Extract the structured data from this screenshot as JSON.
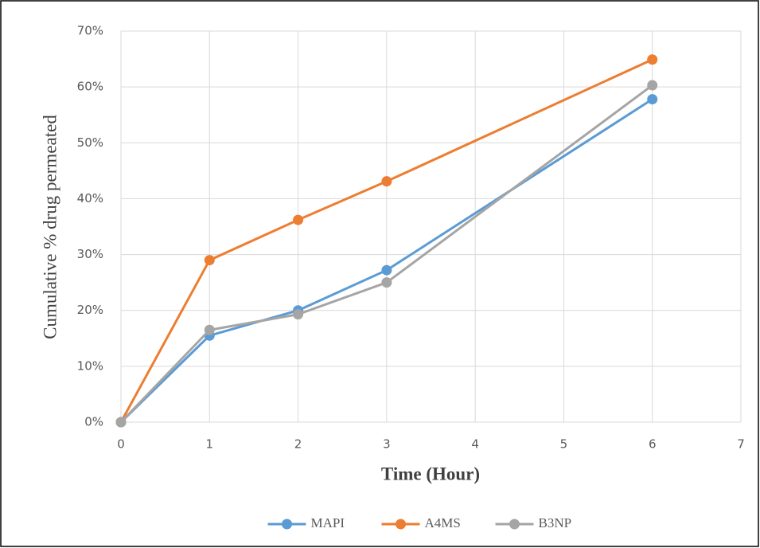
{
  "chart_data": {
    "type": "line",
    "x_label": "Time (Hour)",
    "y_label": "Cumulative % drug permeated",
    "x": [
      0,
      1,
      2,
      3,
      6
    ],
    "series": [
      {
        "name": "MAPI",
        "color": "#5b9bd5",
        "values": [
          0,
          15.5,
          20.0,
          27.2,
          57.8
        ]
      },
      {
        "name": "A4MS",
        "color": "#ed7d31",
        "values": [
          0,
          29.0,
          36.2,
          43.1,
          64.9
        ]
      },
      {
        "name": "B3NP",
        "color": "#a5a5a5",
        "values": [
          0,
          16.5,
          19.3,
          25.0,
          60.3
        ]
      }
    ],
    "xlim": [
      0,
      7
    ],
    "xticks": [
      0,
      1,
      2,
      3,
      4,
      5,
      6,
      7
    ],
    "ylim": [
      0,
      70
    ],
    "yticks": [
      {
        "value": 0,
        "label": "0%"
      },
      {
        "value": 10,
        "label": "10%"
      },
      {
        "value": 20,
        "label": "20%"
      },
      {
        "value": 30,
        "label": "30%"
      },
      {
        "value": 40,
        "label": "40%"
      },
      {
        "value": 50,
        "label": "50%"
      },
      {
        "value": 60,
        "label": "60%"
      },
      {
        "value": 70,
        "label": "70%"
      }
    ],
    "grid": true,
    "legend": "bottom"
  }
}
